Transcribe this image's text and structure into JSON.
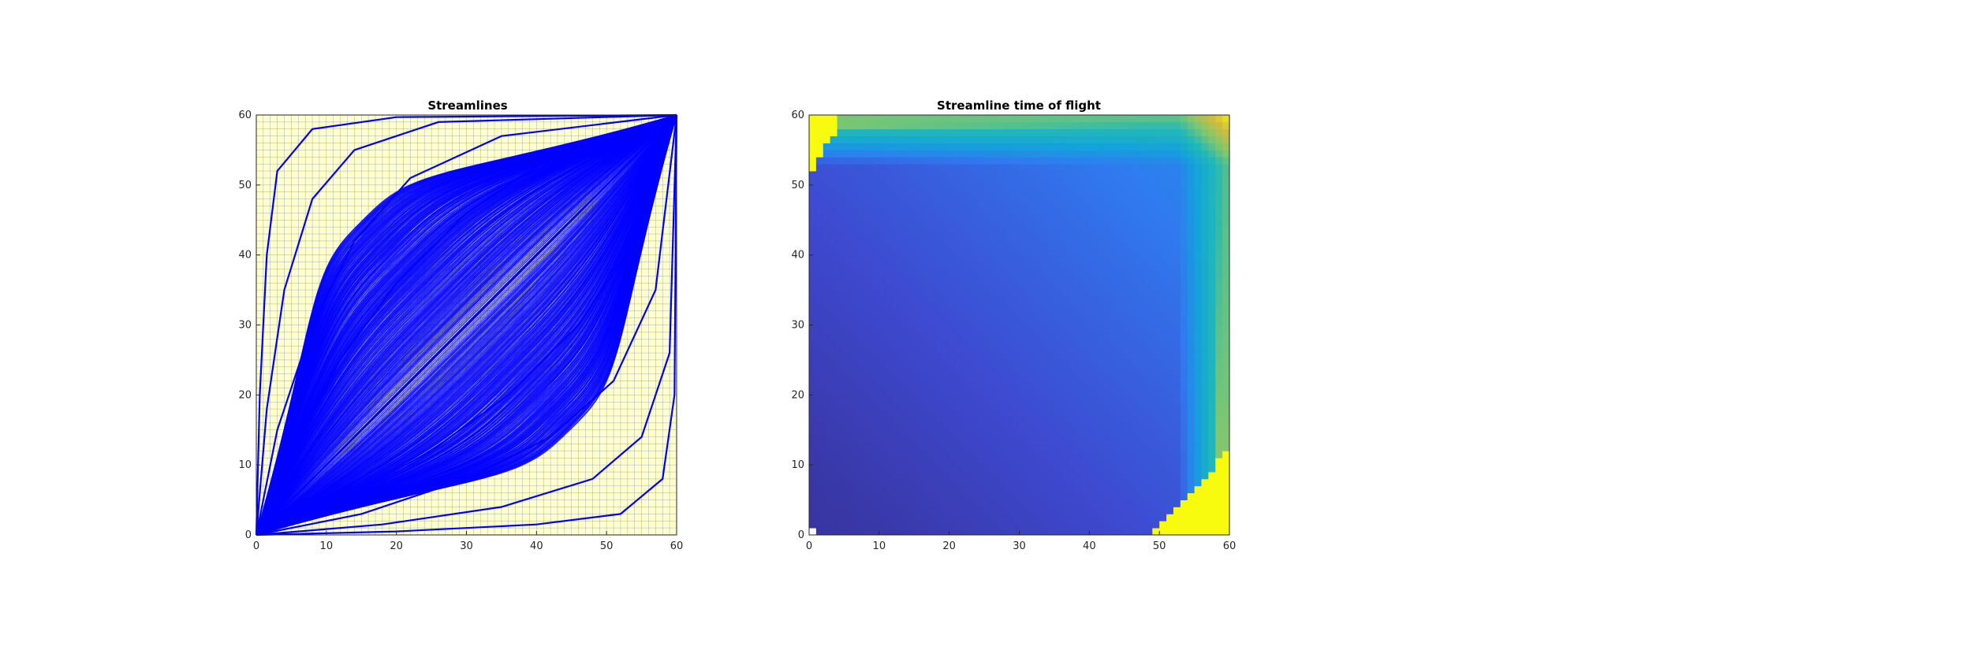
{
  "chart_data": [
    {
      "type": "line",
      "title": "Streamlines",
      "xlabel": "",
      "ylabel": "",
      "xlim": [
        0,
        60
      ],
      "ylim": [
        0,
        60
      ],
      "xticks": [
        "0",
        "10",
        "20",
        "30",
        "40",
        "50",
        "60"
      ],
      "yticks": [
        "0",
        "10",
        "20",
        "30",
        "40",
        "50",
        "60"
      ],
      "grid": "cell grid, 60x60 cells",
      "colors": {
        "background": "#ffffcc",
        "grid": "#5b6fb0",
        "lines": "#0000ff"
      },
      "injector": [
        0,
        0
      ],
      "producer": [
        60,
        60
      ],
      "series": [
        {
          "x": [
            0,
            10,
            20,
            30,
            40,
            50,
            60
          ],
          "y": [
            0,
            10,
            20,
            30,
            40,
            50,
            60
          ]
        },
        {
          "x": [
            0,
            5,
            12,
            20,
            30,
            42,
            60
          ],
          "y": [
            0,
            12,
            25,
            36,
            46,
            54,
            60
          ]
        },
        {
          "x": [
            0,
            3,
            8,
            14,
            22,
            35,
            60
          ],
          "y": [
            0,
            15,
            30,
            42,
            51,
            57,
            60
          ]
        },
        {
          "x": [
            0,
            1.5,
            4,
            8,
            14,
            26,
            60
          ],
          "y": [
            0,
            18,
            35,
            48,
            55,
            59,
            60
          ]
        },
        {
          "x": [
            0,
            0.5,
            1.5,
            3,
            8,
            20,
            60
          ],
          "y": [
            0,
            20,
            40,
            52,
            58,
            59.7,
            60
          ]
        },
        {
          "x": [
            0,
            12,
            25,
            36,
            46,
            54,
            60
          ],
          "y": [
            0,
            5,
            12,
            20,
            30,
            42,
            60
          ]
        },
        {
          "x": [
            0,
            15,
            30,
            42,
            51,
            57,
            60
          ],
          "y": [
            0,
            3,
            8,
            14,
            22,
            35,
            60
          ]
        },
        {
          "x": [
            0,
            18,
            35,
            48,
            55,
            59,
            60
          ],
          "y": [
            0,
            1.5,
            4,
            8,
            14,
            26,
            60
          ]
        },
        {
          "x": [
            0,
            20,
            40,
            52,
            58,
            59.7,
            60
          ],
          "y": [
            0,
            0.5,
            1.5,
            3,
            8,
            20,
            60
          ]
        }
      ]
    },
    {
      "type": "heatmap",
      "title": "Streamline time of flight",
      "xlabel": "",
      "ylabel": "",
      "xlim": [
        0,
        60
      ],
      "ylim": [
        0,
        60
      ],
      "xticks": [
        "0",
        "10",
        "20",
        "30",
        "40",
        "50",
        "60"
      ],
      "yticks": [
        "0",
        "10",
        "20",
        "30",
        "40",
        "50",
        "60"
      ],
      "grid_size": [
        60,
        60
      ],
      "colormap": "parula",
      "colormap_stops": [
        "#352a87",
        "#3e49d0",
        "#2f7cf0",
        "#14a3da",
        "#22b8b8",
        "#7dc770",
        "#d4bb3c",
        "#f9fb0e"
      ],
      "value_description": "time of flight, normalized 0 (low) to 1 (saturated high)",
      "saturated_regions": [
        "top-left corner along x=0..4, y=53..60",
        "bottom-right corner along x=49..60, y=0..12"
      ]
    }
  ]
}
